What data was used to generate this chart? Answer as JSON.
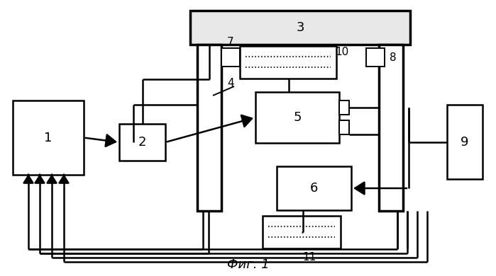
{
  "bg_color": "#ffffff",
  "lc": "#000000",
  "title": "Фиг. 1"
}
